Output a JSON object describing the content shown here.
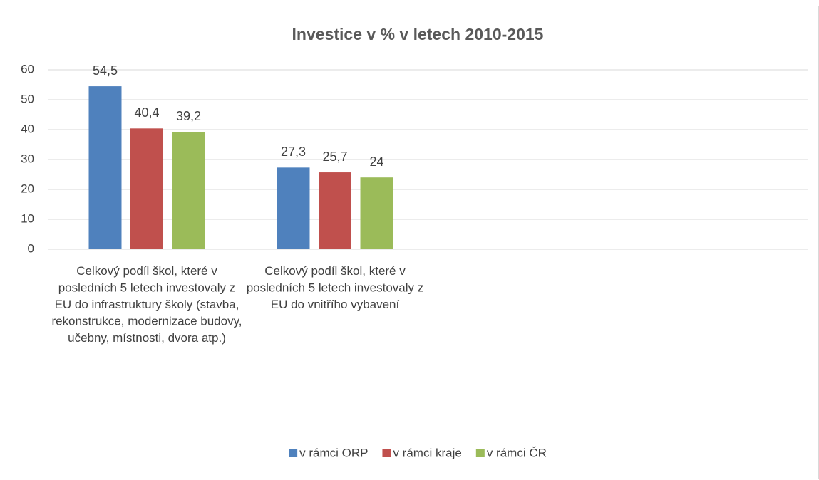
{
  "chart_data": {
    "type": "bar",
    "title": "Investice v % v letech 2010-2015",
    "categories": [
      "Celkový podíl škol, které v posledních 5 letech investovaly z EU do infrastruktury školy (stavba, rekonstrukce, modernizace budovy, učebny, místnosti, dvora atp.)",
      "Celkový podíl škol, které v posledních 5 letech investovaly z EU do vnitřího vybavení"
    ],
    "series": [
      {
        "name": "v rámci ORP",
        "color": "#4f81bd",
        "values": [
          54.5,
          27.3
        ],
        "value_labels": [
          "54,5",
          "27,3"
        ]
      },
      {
        "name": "v rámci kraje",
        "color": "#c0504d",
        "values": [
          40.4,
          25.7
        ],
        "value_labels": [
          "40,4",
          "25,7"
        ]
      },
      {
        "name": "v rámci ČR",
        "color": "#9bbb59",
        "values": [
          39.2,
          24
        ],
        "value_labels": [
          "39,2",
          "24"
        ]
      }
    ],
    "ylim": [
      0,
      60
    ],
    "yticks": [
      0,
      10,
      20,
      30,
      40,
      50,
      60
    ],
    "grid": true,
    "legend": "bottom"
  }
}
